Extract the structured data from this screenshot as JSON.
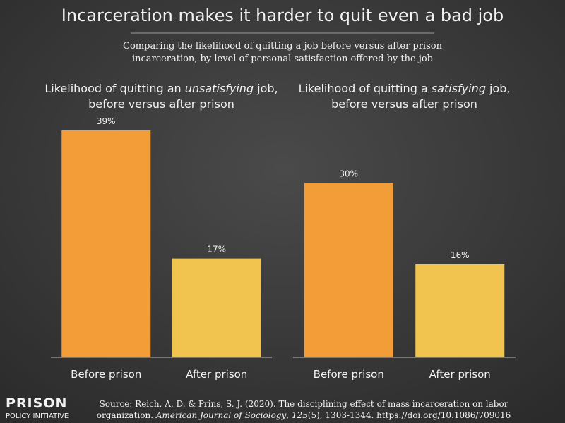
{
  "header": {
    "title": "Incarceration makes it harder to quit even a bad job",
    "subtitle_lines": [
      "Comparing the likelihood of quitting a job before versus after prison",
      "incarceration, by level of personal satisfaction offered by the job"
    ]
  },
  "chart_data": [
    {
      "type": "bar",
      "title_lines": [
        [
          {
            "text": "Likelihood of quitting an ",
            "italic": false
          },
          {
            "text": "unsatisfying",
            "italic": true
          },
          {
            "text": " job,",
            "italic": false
          }
        ],
        [
          {
            "text": "before versus after prison",
            "italic": false
          }
        ]
      ],
      "categories": [
        "Before prison",
        "After prison"
      ],
      "values": [
        39,
        17
      ],
      "value_labels": [
        "39%",
        "17%"
      ],
      "colors": [
        "#f29d38",
        "#f0c44e"
      ],
      "ylim": [
        0,
        39
      ]
    },
    {
      "type": "bar",
      "title_lines": [
        [
          {
            "text": "Likelihood of quitting a ",
            "italic": false
          },
          {
            "text": "satisfying",
            "italic": true
          },
          {
            "text": " job,",
            "italic": false
          }
        ],
        [
          {
            "text": "before versus after prison",
            "italic": false
          }
        ]
      ],
      "categories": [
        "Before prison",
        "After prison"
      ],
      "values": [
        30,
        16
      ],
      "value_labels": [
        "30%",
        "16%"
      ],
      "colors": [
        "#f29d38",
        "#f0c44e"
      ],
      "ylim": [
        0,
        39
      ]
    }
  ],
  "source_lines": [
    [
      {
        "text": "Source: Reich, A. D. & Prins, S. J. (2020). The disciplining effect of mass incarceration on labor",
        "italic": false
      }
    ],
    [
      {
        "text": "organization. ",
        "italic": false
      },
      {
        "text": "American Journal of Sociology",
        "italic": true
      },
      {
        "text": ", ",
        "italic": false
      },
      {
        "text": "125",
        "italic": true
      },
      {
        "text": "(5), 1303-1344. https://doi.org/10.1086/709016",
        "italic": false
      }
    ]
  ],
  "logo": {
    "line1": "PRISON",
    "line2": "POLICY INITIATIVE"
  }
}
